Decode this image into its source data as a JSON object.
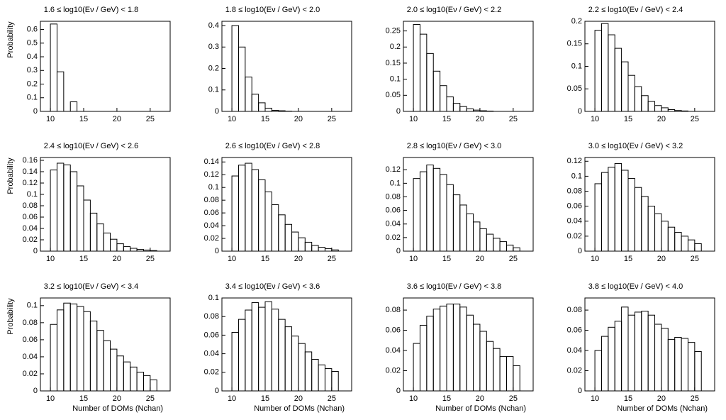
{
  "chart_data": [
    {
      "type": "histogram",
      "title": "1.6 ≤ log10(Eν / GeV) < 1.8",
      "ylabel": "Probability",
      "color": "#000000",
      "bins": [
        10,
        11,
        12,
        13,
        14,
        15,
        16,
        17,
        18,
        19,
        20,
        21,
        22,
        23,
        24,
        25,
        26
      ],
      "values": [
        0.64,
        0.29,
        0,
        0.07,
        0,
        0,
        0,
        0,
        0,
        0,
        0,
        0,
        0,
        0,
        0,
        0
      ],
      "xlim": [
        8.5,
        28
      ],
      "xticks": [
        10,
        15,
        20,
        25
      ],
      "ylim": [
        0,
        0.66
      ],
      "yticks": [
        0,
        0.1,
        0.2,
        0.3,
        0.4,
        0.5,
        0.6
      ]
    },
    {
      "type": "histogram",
      "title": "1.8 ≤ log10(Eν / GeV) < 2.0",
      "color": "#000000",
      "bins": [
        10,
        11,
        12,
        13,
        14,
        15,
        16,
        17,
        18,
        19,
        20,
        21,
        22,
        23,
        24,
        25,
        26
      ],
      "values": [
        0.4,
        0.3,
        0.16,
        0.08,
        0.04,
        0.015,
        0.005,
        0.003,
        0.001,
        0,
        0,
        0,
        0,
        0,
        0,
        0
      ],
      "xlim": [
        8.5,
        28
      ],
      "xticks": [
        10,
        15,
        20,
        25
      ],
      "ylim": [
        0,
        0.42
      ],
      "yticks": [
        0,
        0.1,
        0.2,
        0.3,
        0.4
      ]
    },
    {
      "type": "histogram",
      "title": "2.0 ≤ log10(Eν / GeV) < 2.2",
      "color": "#000000",
      "bins": [
        10,
        11,
        12,
        13,
        14,
        15,
        16,
        17,
        18,
        19,
        20,
        21,
        22,
        23,
        24,
        25,
        26
      ],
      "values": [
        0.27,
        0.24,
        0.18,
        0.125,
        0.08,
        0.045,
        0.025,
        0.015,
        0.008,
        0.004,
        0.002,
        0.001,
        0,
        0,
        0,
        0
      ],
      "xlim": [
        8.5,
        28
      ],
      "xticks": [
        10,
        15,
        20,
        25
      ],
      "ylim": [
        0,
        0.28
      ],
      "yticks": [
        0,
        0.05,
        0.1,
        0.15,
        0.2,
        0.25
      ]
    },
    {
      "type": "histogram",
      "title": "2.2 ≤ log10(Eν / GeV) < 2.4",
      "color": "#000000",
      "bins": [
        10,
        11,
        12,
        13,
        14,
        15,
        16,
        17,
        18,
        19,
        20,
        21,
        22,
        23,
        24,
        25,
        26
      ],
      "values": [
        0.18,
        0.195,
        0.17,
        0.14,
        0.11,
        0.08,
        0.055,
        0.035,
        0.022,
        0.013,
        0.008,
        0.004,
        0.002,
        0.001,
        0,
        0
      ],
      "xlim": [
        8.5,
        28
      ],
      "xticks": [
        10,
        15,
        20,
        25
      ],
      "ylim": [
        0,
        0.2
      ],
      "yticks": [
        0,
        0.05,
        0.1,
        0.15,
        0.2
      ]
    },
    {
      "type": "histogram",
      "title": "2.4 ≤ log10(Eν / GeV) < 2.6",
      "ylabel": "Probability",
      "color": "#000000",
      "bins": [
        10,
        11,
        12,
        13,
        14,
        15,
        16,
        17,
        18,
        19,
        20,
        21,
        22,
        23,
        24,
        25,
        26
      ],
      "values": [
        0.143,
        0.155,
        0.152,
        0.14,
        0.115,
        0.09,
        0.067,
        0.048,
        0.032,
        0.021,
        0.013,
        0.008,
        0.005,
        0.003,
        0.002,
        0.001
      ],
      "xlim": [
        8.5,
        28
      ],
      "xticks": [
        10,
        15,
        20,
        25
      ],
      "ylim": [
        0,
        0.165
      ],
      "yticks": [
        0,
        0.02,
        0.04,
        0.06,
        0.08,
        0.1,
        0.12,
        0.14,
        0.16
      ]
    },
    {
      "type": "histogram",
      "title": "2.6 ≤ log10(Eν / GeV) < 2.8",
      "color": "#000000",
      "bins": [
        10,
        11,
        12,
        13,
        14,
        15,
        16,
        17,
        18,
        19,
        20,
        21,
        22,
        23,
        24,
        25,
        26
      ],
      "values": [
        0.118,
        0.135,
        0.138,
        0.128,
        0.112,
        0.093,
        0.073,
        0.057,
        0.042,
        0.03,
        0.021,
        0.014,
        0.009,
        0.006,
        0.004,
        0.002
      ],
      "xlim": [
        8.5,
        28
      ],
      "xticks": [
        10,
        15,
        20,
        25
      ],
      "ylim": [
        0,
        0.147
      ],
      "yticks": [
        0,
        0.02,
        0.04,
        0.06,
        0.08,
        0.1,
        0.12,
        0.14
      ]
    },
    {
      "type": "histogram",
      "title": "2.8 ≤ log10(Eν / GeV) < 3.0",
      "color": "#000000",
      "bins": [
        10,
        11,
        12,
        13,
        14,
        15,
        16,
        17,
        18,
        19,
        20,
        21,
        22,
        23,
        24,
        25,
        26
      ],
      "values": [
        0.107,
        0.117,
        0.127,
        0.122,
        0.113,
        0.098,
        0.083,
        0.068,
        0.055,
        0.043,
        0.033,
        0.025,
        0.019,
        0.014,
        0.009,
        0.005
      ],
      "xlim": [
        8.5,
        28
      ],
      "xticks": [
        10,
        15,
        20,
        25
      ],
      "ylim": [
        0,
        0.138
      ],
      "yticks": [
        0,
        0.02,
        0.04,
        0.06,
        0.08,
        0.1,
        0.12
      ]
    },
    {
      "type": "histogram",
      "title": "3.0 ≤ log10(Eν / GeV) < 3.2",
      "color": "#000000",
      "bins": [
        10,
        11,
        12,
        13,
        14,
        15,
        16,
        17,
        18,
        19,
        20,
        21,
        22,
        23,
        24,
        25,
        26
      ],
      "values": [
        0.09,
        0.105,
        0.112,
        0.117,
        0.108,
        0.097,
        0.085,
        0.073,
        0.06,
        0.05,
        0.04,
        0.032,
        0.025,
        0.02,
        0.015,
        0.01
      ],
      "xlim": [
        8.5,
        28
      ],
      "xticks": [
        10,
        15,
        20,
        25
      ],
      "ylim": [
        0,
        0.125
      ],
      "yticks": [
        0,
        0.02,
        0.04,
        0.06,
        0.08,
        0.1,
        0.12
      ]
    },
    {
      "type": "histogram",
      "title": "3.2 ≤ log10(Eν / GeV) < 3.4",
      "ylabel": "Probability",
      "xlabel": "Number of DOMs (Nchan)",
      "color": "#000000",
      "bins": [
        10,
        11,
        12,
        13,
        14,
        15,
        16,
        17,
        18,
        19,
        20,
        21,
        22,
        23,
        24,
        25,
        26
      ],
      "values": [
        0.078,
        0.095,
        0.103,
        0.102,
        0.099,
        0.093,
        0.082,
        0.071,
        0.059,
        0.049,
        0.041,
        0.034,
        0.028,
        0.022,
        0.018,
        0.013
      ],
      "xlim": [
        8.5,
        28
      ],
      "xticks": [
        10,
        15,
        20,
        25
      ],
      "ylim": [
        0,
        0.109
      ],
      "yticks": [
        0,
        0.02,
        0.04,
        0.06,
        0.08,
        0.1
      ]
    },
    {
      "type": "histogram",
      "title": "3.4 ≤ log10(Eν / GeV) < 3.6",
      "xlabel": "Number of DOMs (Nchan)",
      "color": "#000000",
      "bins": [
        10,
        11,
        12,
        13,
        14,
        15,
        16,
        17,
        18,
        19,
        20,
        21,
        22,
        23,
        24,
        25,
        26
      ],
      "values": [
        0.063,
        0.077,
        0.087,
        0.095,
        0.09,
        0.096,
        0.088,
        0.077,
        0.069,
        0.059,
        0.051,
        0.042,
        0.034,
        0.028,
        0.024,
        0.021
      ],
      "xlim": [
        8.5,
        28
      ],
      "xticks": [
        10,
        15,
        20,
        25
      ],
      "ylim": [
        0,
        0.1
      ],
      "yticks": [
        0,
        0.02,
        0.04,
        0.06,
        0.08,
        0.1
      ]
    },
    {
      "type": "histogram",
      "title": "3.6 ≤ log10(Eν / GeV) < 3.8",
      "xlabel": "Number of DOMs (Nchan)",
      "color": "#000000",
      "bins": [
        10,
        11,
        12,
        13,
        14,
        15,
        16,
        17,
        18,
        19,
        20,
        21,
        22,
        23,
        24,
        25,
        26
      ],
      "values": [
        0.047,
        0.065,
        0.074,
        0.081,
        0.084,
        0.086,
        0.086,
        0.083,
        0.075,
        0.066,
        0.059,
        0.049,
        0.042,
        0.034,
        0.034,
        0.025
      ],
      "xlim": [
        8.5,
        28
      ],
      "xticks": [
        10,
        15,
        20,
        25
      ],
      "ylim": [
        0,
        0.092
      ],
      "yticks": [
        0,
        0.02,
        0.04,
        0.06,
        0.08
      ]
    },
    {
      "type": "histogram",
      "title": "3.8 ≤ log10(Eν / GeV) < 4.0",
      "xlabel": "Number of DOMs (Nchan)",
      "color": "#000000",
      "bins": [
        10,
        11,
        12,
        13,
        14,
        15,
        16,
        17,
        18,
        19,
        20,
        21,
        22,
        23,
        24,
        25,
        26
      ],
      "values": [
        0.04,
        0.054,
        0.063,
        0.069,
        0.083,
        0.075,
        0.078,
        0.079,
        0.075,
        0.066,
        0.062,
        0.051,
        0.053,
        0.052,
        0.048,
        0.039
      ],
      "xlim": [
        8.5,
        28
      ],
      "xticks": [
        10,
        15,
        20,
        25
      ],
      "ylim": [
        0,
        0.092
      ],
      "yticks": [
        0,
        0.02,
        0.04,
        0.06,
        0.08
      ]
    }
  ]
}
